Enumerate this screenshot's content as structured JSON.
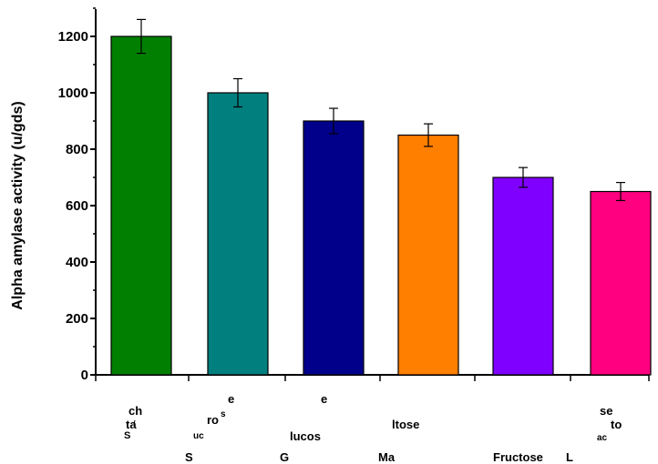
{
  "chart_data": {
    "type": "bar",
    "title": "",
    "xlabel": "",
    "ylabel": "Alpha amylase activity (u/gds)",
    "ylim": [
      0,
      1300
    ],
    "yticks": [
      0,
      200,
      400,
      600,
      800,
      1000,
      1200
    ],
    "grid": false,
    "categories": [
      "Starch",
      "Sucrose",
      "Glucose",
      "Maltose",
      "Fructose",
      "Lactose"
    ],
    "values": [
      1200,
      1000,
      900,
      850,
      700,
      650
    ],
    "errors": [
      60,
      50,
      45,
      40,
      35,
      32
    ],
    "colors": [
      "#007f00",
      "#007f7f",
      "#00008b",
      "#ff7f00",
      "#8000ff",
      "#ff0080"
    ],
    "category_label_fragments": [
      [
        {
          "t": "ch"
        },
        {
          "t": "ta"
        },
        {
          "t": "S"
        }
      ],
      [
        {
          "t": "e"
        },
        {
          "t": "ro"
        },
        {
          "t": "s"
        },
        {
          "t": "uc"
        },
        {
          "t": "S"
        }
      ],
      [
        {
          "t": "e"
        },
        {
          "t": "lucos"
        },
        {
          "t": "G"
        }
      ],
      [
        {
          "t": "ltose"
        },
        {
          "t": "Ma"
        }
      ],
      [
        {
          "t": "Fructose"
        }
      ],
      [
        {
          "t": "se"
        },
        {
          "t": "to"
        },
        {
          "t": "ac"
        },
        {
          "t": "L"
        }
      ]
    ]
  }
}
